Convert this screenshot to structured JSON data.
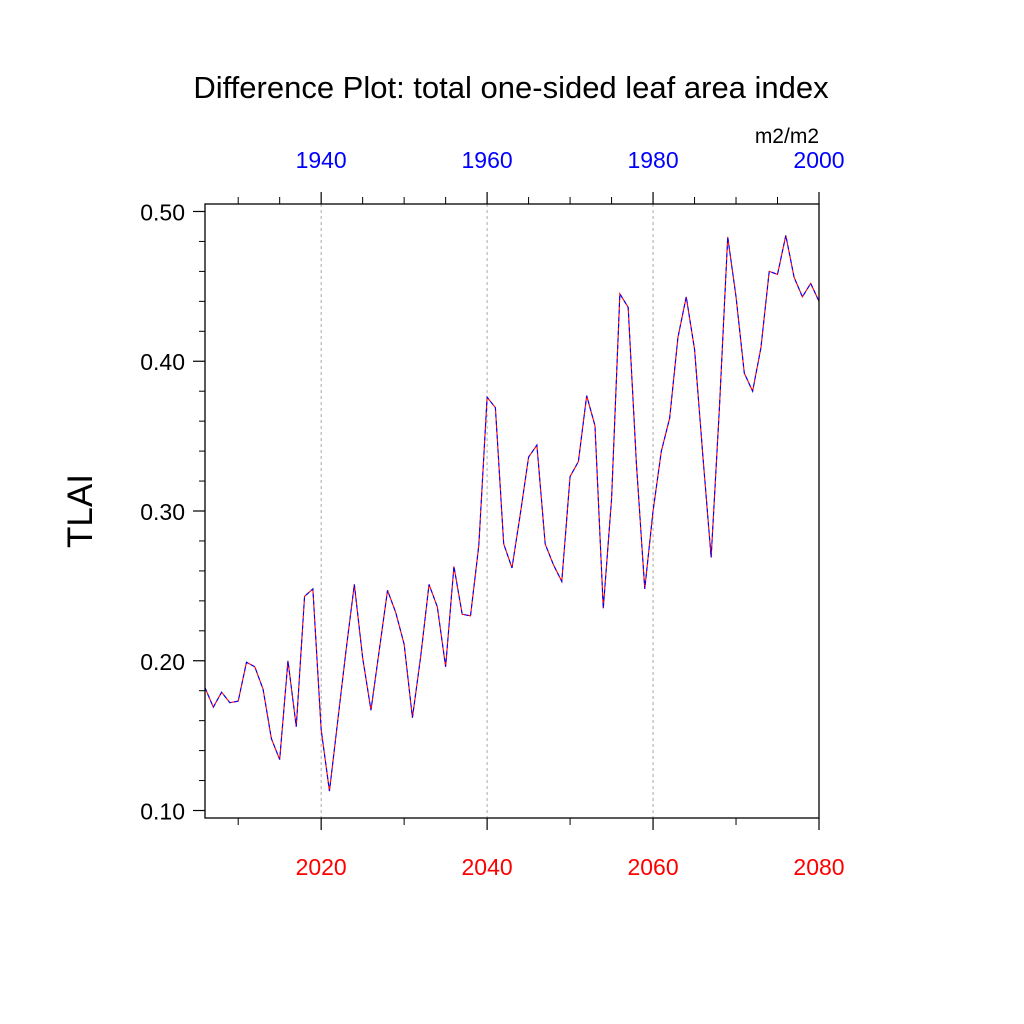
{
  "chart_data": {
    "type": "line",
    "title": "Difference Plot: total one-sided leaf area index",
    "ylabel": "TLAI",
    "units": "m2/m2",
    "ylim": [
      0.095,
      0.505
    ],
    "yticks": [
      0.1,
      0.2,
      0.3,
      0.4,
      0.5
    ],
    "ytick_labels": [
      "0.10",
      "0.20",
      "0.30",
      "0.40",
      "0.50"
    ],
    "xlim_bottom": [
      2006,
      2080
    ],
    "xticks_bottom": [
      2020,
      2040,
      2060,
      2080
    ],
    "xtick_labels_bottom": [
      "2020",
      "2040",
      "2060",
      "2080"
    ],
    "xlim_top": [
      1926,
      2000
    ],
    "xticks_top": [
      1940,
      1960,
      1980,
      2000
    ],
    "xtick_labels_top": [
      "1940",
      "1960",
      "1980",
      "2000"
    ],
    "grid": "vertical dotted at bottom-axis major ticks",
    "colors": {
      "bottom_axis": "#ff0000",
      "top_axis": "#0000ff",
      "line_a": "#ff0000",
      "line_b": "#0000ff",
      "grid": "#aaaaaa"
    },
    "x": [
      2006,
      2007,
      2008,
      2009,
      2010,
      2011,
      2012,
      2013,
      2014,
      2015,
      2016,
      2017,
      2018,
      2019,
      2020,
      2021,
      2022,
      2023,
      2024,
      2025,
      2026,
      2027,
      2028,
      2029,
      2030,
      2031,
      2032,
      2033,
      2034,
      2035,
      2036,
      2037,
      2038,
      2039,
      2040,
      2041,
      2042,
      2043,
      2044,
      2045,
      2046,
      2047,
      2048,
      2049,
      2050,
      2051,
      2052,
      2053,
      2054,
      2055,
      2056,
      2057,
      2058,
      2059,
      2060,
      2061,
      2062,
      2063,
      2064,
      2065,
      2066,
      2067,
      2068,
      2069,
      2070,
      2071,
      2072,
      2073,
      2074,
      2075,
      2076,
      2077,
      2078,
      2079,
      2080
    ],
    "series": [
      {
        "values": [
          0.182,
          0.169,
          0.179,
          0.172,
          0.173,
          0.199,
          0.196,
          0.181,
          0.148,
          0.134,
          0.2,
          0.156,
          0.243,
          0.248,
          0.154,
          0.113,
          0.16,
          0.207,
          0.251,
          0.202,
          0.167,
          0.207,
          0.247,
          0.232,
          0.211,
          0.162,
          0.203,
          0.251,
          0.236,
          0.196,
          0.263,
          0.231,
          0.23,
          0.277,
          0.376,
          0.369,
          0.278,
          0.262,
          0.298,
          0.336,
          0.344,
          0.278,
          0.264,
          0.253,
          0.323,
          0.333,
          0.377,
          0.357,
          0.235,
          0.308,
          0.445,
          0.436,
          0.331,
          0.248,
          0.3,
          0.34,
          0.362,
          0.416,
          0.443,
          0.408,
          0.337,
          0.269,
          0.369,
          0.483,
          0.443,
          0.392,
          0.38,
          0.409,
          0.46,
          0.458,
          0.484,
          0.456,
          0.443,
          0.452,
          0.44
        ]
      }
    ]
  }
}
